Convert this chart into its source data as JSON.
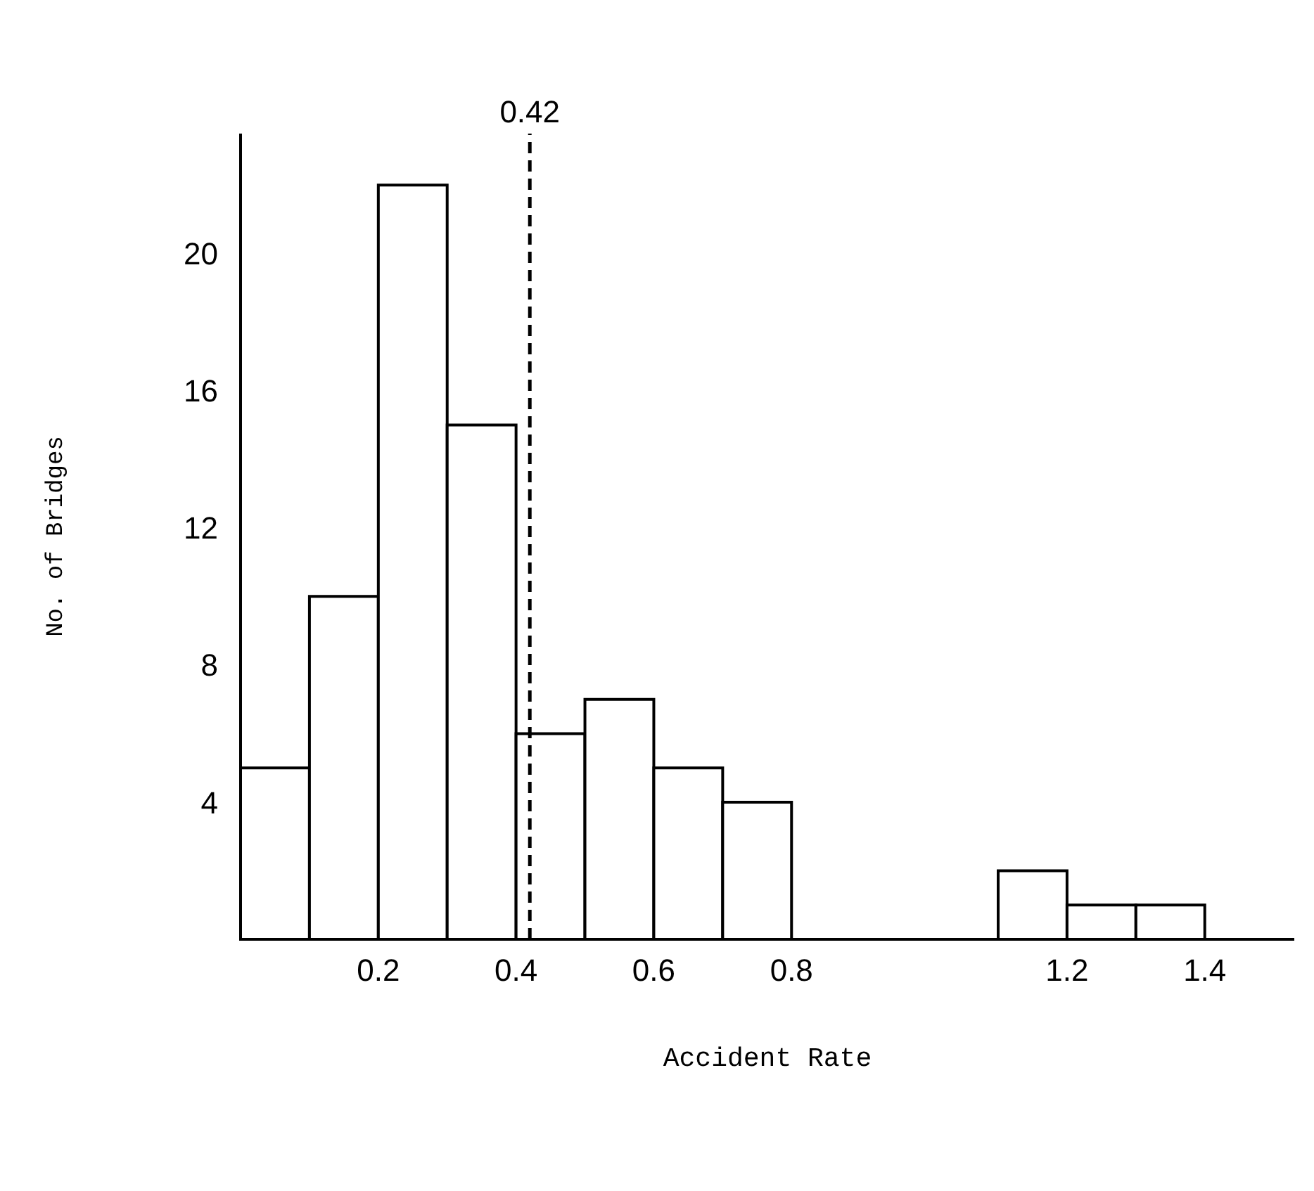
{
  "chart_data": {
    "type": "histogram",
    "xlabel": "Accident Rate",
    "ylabel": "No. of Bridges",
    "bins": [
      0,
      0.1,
      0.2,
      0.3,
      0.4,
      0.5,
      0.6,
      0.7,
      0.8,
      0.9,
      1.0,
      1.1,
      1.2,
      1.3,
      1.4
    ],
    "values": [
      5,
      10,
      22,
      15,
      6,
      7,
      5,
      4,
      0,
      0,
      0,
      2,
      1,
      1
    ],
    "color": "#ffffff",
    "xlim": [
      0,
      1.53
    ],
    "xticks": [
      0.2,
      0.4,
      0.6,
      0.8,
      1.2,
      1.4
    ],
    "ylim": [
      0,
      23.5
    ],
    "yticks": [
      4,
      8,
      12,
      16,
      20
    ],
    "ref_lines": [
      {
        "axis": "x",
        "value": 0.42,
        "label": "0.42",
        "line_style": "dashed",
        "color": "#000000"
      }
    ]
  }
}
